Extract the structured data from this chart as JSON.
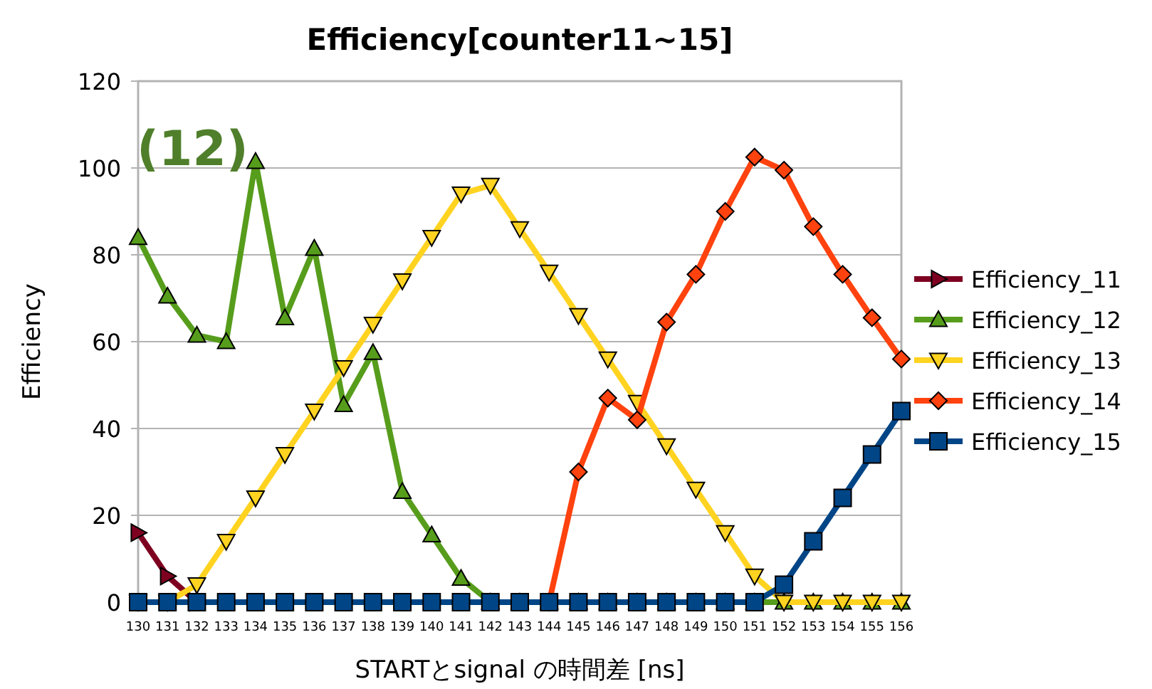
{
  "chart_data": {
    "type": "line",
    "title": "Efficiency[counter11~15]",
    "xlabel": "STARTとsignal の時間差 [ns]",
    "ylabel": "Efficiency",
    "annotations": [
      "(12)"
    ],
    "categories": [
      "130",
      "131",
      "132",
      "133",
      "134",
      "135",
      "136",
      "137",
      "138",
      "139",
      "140",
      "141",
      "142",
      "143",
      "144",
      "145",
      "146",
      "147",
      "148",
      "149",
      "150",
      "151",
      "152",
      "153",
      "154",
      "155",
      "156"
    ],
    "series": [
      {
        "name": "Efficiency_11",
        "color": "#7e0021",
        "marker": "triangle-right",
        "values": [
          16,
          6,
          0,
          null,
          null,
          null,
          null,
          null,
          null,
          null,
          null,
          null,
          null,
          null,
          null,
          null,
          null,
          null,
          null,
          null,
          null,
          null,
          null,
          null,
          null,
          null,
          null
        ]
      },
      {
        "name": "Efficiency_12",
        "color": "#579d1c",
        "marker": "triangle",
        "values": [
          84,
          70.5,
          61.5,
          60,
          101.5,
          65.5,
          81.5,
          45.5,
          57.5,
          25.5,
          15.5,
          5.5,
          0,
          0,
          0,
          0,
          0,
          0,
          0,
          0,
          0,
          0,
          0,
          0,
          0,
          0,
          0
        ]
      },
      {
        "name": "Efficiency_13",
        "color": "#ffd320",
        "marker": "triangle-down",
        "values": [
          0,
          0,
          4,
          14,
          24,
          34,
          44,
          54,
          64,
          74,
          84,
          94,
          96,
          86,
          76,
          66,
          56,
          46,
          36,
          26,
          16,
          6,
          0,
          0,
          0,
          0,
          0
        ]
      },
      {
        "name": "Efficiency_14",
        "color": "#ff420e",
        "marker": "diamond",
        "values": [
          null,
          null,
          null,
          null,
          null,
          null,
          null,
          null,
          null,
          null,
          null,
          null,
          null,
          null,
          0,
          30,
          47,
          42,
          64.5,
          75.5,
          90,
          102.5,
          99.5,
          86.5,
          75.5,
          65.5,
          56
        ]
      },
      {
        "name": "Efficiency_15",
        "color": "#004586",
        "marker": "square",
        "values": [
          0,
          0,
          0,
          0,
          0,
          0,
          0,
          0,
          0,
          0,
          0,
          0,
          0,
          0,
          0,
          0,
          0,
          0,
          0,
          0,
          0,
          0,
          4,
          14,
          24,
          34,
          44
        ]
      }
    ],
    "ylim": [
      0,
      120
    ],
    "yticks": [
      0,
      20,
      40,
      60,
      80,
      100,
      120
    ],
    "grid": "y",
    "legend": "right",
    "line_style": "solid"
  }
}
